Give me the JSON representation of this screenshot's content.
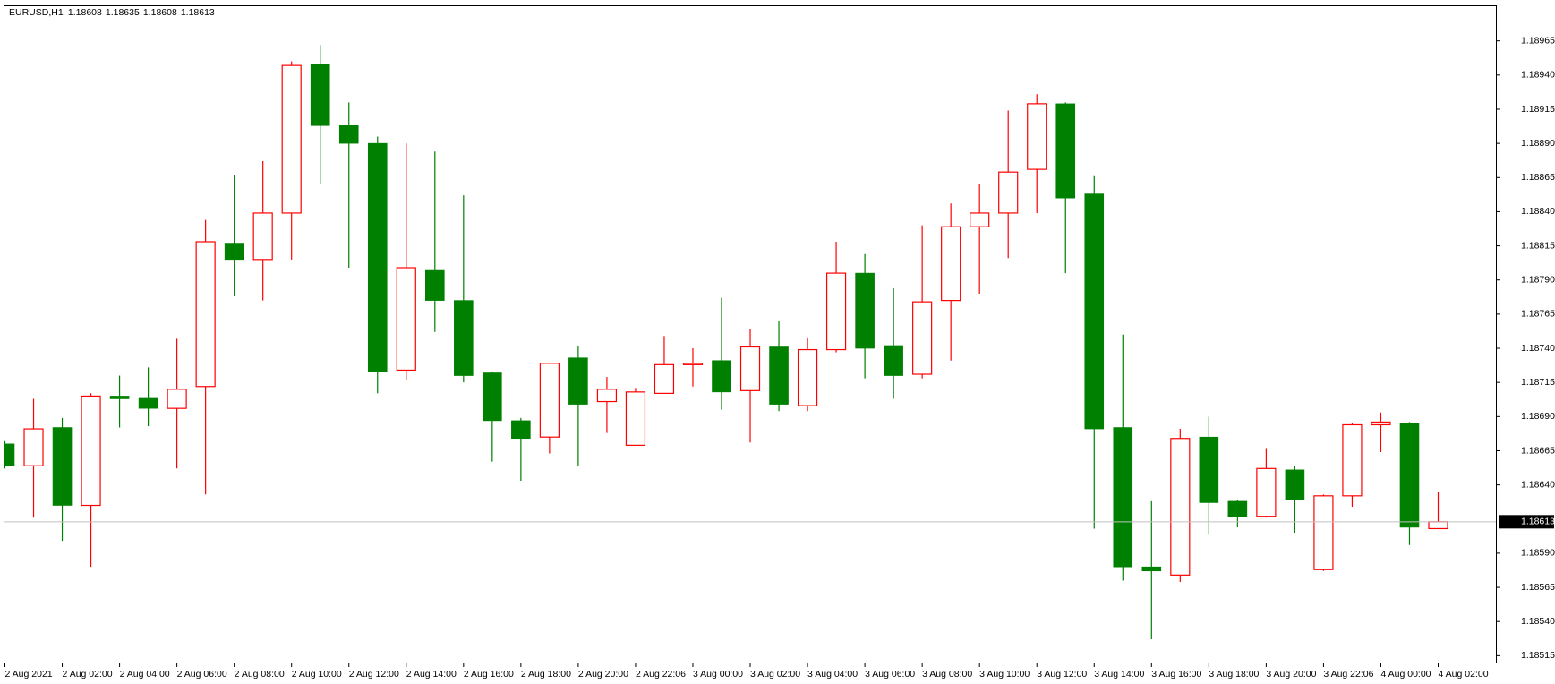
{
  "chart_data": {
    "type": "candlestick",
    "title": "EURUSD,H1",
    "categories": [
      "2 Aug 2021",
      null,
      "2 Aug 02:00",
      null,
      "2 Aug 04:00",
      null,
      "2 Aug 06:00",
      null,
      "2 Aug 08:00",
      null,
      "2 Aug 10:00",
      null,
      "2 Aug 12:00",
      null,
      "2 Aug 14:00",
      null,
      "2 Aug 16:00",
      null,
      "2 Aug 18:00",
      null,
      "2 Aug 20:00",
      null,
      "2 Aug 22:06",
      null,
      "3 Aug 00:00",
      null,
      "3 Aug 02:00",
      null,
      "3 Aug 04:00",
      null,
      "3 Aug 06:00",
      null,
      "3 Aug 08:00",
      null,
      "3 Aug 10:00",
      null,
      "3 Aug 12:00",
      null,
      "3 Aug 14:00",
      null,
      "3 Aug 16:00",
      null,
      "3 Aug 18:00",
      null,
      "3 Aug 20:00",
      null,
      "3 Aug 22:06",
      null,
      "4 Aug 00:00",
      null,
      "4 Aug 02:00"
    ],
    "open": [
      1.1867,
      1.18654,
      1.18682,
      1.18625,
      1.18705,
      1.18704,
      1.18696,
      1.18712,
      1.18817,
      1.18805,
      1.18839,
      1.18948,
      1.18903,
      1.1889,
      1.18724,
      1.18797,
      1.18775,
      1.18722,
      1.18687,
      1.18675,
      1.18733,
      1.18701,
      1.18669,
      1.18707,
      1.18728,
      1.18731,
      1.18709,
      1.18741,
      1.18698,
      1.18739,
      1.18795,
      1.18742,
      1.18721,
      1.18775,
      1.18829,
      1.18839,
      1.18871,
      1.18919,
      1.18853,
      1.18682,
      1.1858,
      1.18574,
      1.18675,
      1.18628,
      1.18617,
      1.18651,
      1.18578,
      1.18632,
      1.18684,
      1.18685,
      1.18608
    ],
    "high": [
      1.18672,
      1.18703,
      1.18689,
      1.18707,
      1.1872,
      1.18726,
      1.18747,
      1.18834,
      1.18867,
      1.18877,
      1.1895,
      1.18962,
      1.1892,
      1.18895,
      1.1889,
      1.18884,
      1.18852,
      1.18723,
      1.18689,
      1.18729,
      1.18742,
      1.18719,
      1.18711,
      1.18749,
      1.1874,
      1.18777,
      1.18754,
      1.1876,
      1.18748,
      1.18818,
      1.18809,
      1.18784,
      1.1883,
      1.18846,
      1.1886,
      1.18914,
      1.18926,
      1.1892,
      1.18866,
      1.1875,
      1.18628,
      1.18681,
      1.1869,
      1.18629,
      1.18667,
      1.18654,
      1.18633,
      1.18685,
      1.18693,
      1.18686,
      1.18635
    ],
    "low": [
      1.18652,
      1.18616,
      1.18599,
      1.1858,
      1.18682,
      1.18683,
      1.18652,
      1.18633,
      1.18778,
      1.18775,
      1.18805,
      1.1886,
      1.18799,
      1.18707,
      1.18717,
      1.18752,
      1.18715,
      1.18657,
      1.18643,
      1.18663,
      1.18654,
      1.18678,
      1.18669,
      1.18707,
      1.18712,
      1.18695,
      1.18671,
      1.18694,
      1.18694,
      1.18737,
      1.18718,
      1.18703,
      1.18718,
      1.18731,
      1.1878,
      1.18806,
      1.18839,
      1.18795,
      1.18608,
      1.1857,
      1.18527,
      1.18569,
      1.18604,
      1.18609,
      1.18616,
      1.18605,
      1.18577,
      1.18624,
      1.18664,
      1.18596,
      1.18608
    ],
    "close": [
      1.18654,
      1.18681,
      1.18625,
      1.18705,
      1.18703,
      1.18696,
      1.1871,
      1.18818,
      1.18805,
      1.18839,
      1.18947,
      1.18903,
      1.1889,
      1.18723,
      1.18799,
      1.18775,
      1.1872,
      1.18687,
      1.18674,
      1.18729,
      1.18699,
      1.1871,
      1.18708,
      1.18728,
      1.18729,
      1.18708,
      1.18741,
      1.18699,
      1.18739,
      1.18795,
      1.1874,
      1.1872,
      1.18774,
      1.18829,
      1.18839,
      1.18869,
      1.18919,
      1.1885,
      1.18681,
      1.1858,
      1.18577,
      1.18674,
      1.18627,
      1.18617,
      1.18652,
      1.18629,
      1.18632,
      1.18684,
      1.18686,
      1.18609,
      1.18613
    ],
    "up_color": "#ff0000",
    "down_color": "#008000",
    "ylim": [
      1.1851,
      1.18991
    ],
    "yticks": [
      {
        "value": 1.18965,
        "label": "1.18965"
      },
      {
        "value": 1.1894,
        "label": "1.18940"
      },
      {
        "value": 1.18915,
        "label": "1.18915"
      },
      {
        "value": 1.1889,
        "label": "1.18890"
      },
      {
        "value": 1.18865,
        "label": "1.18865"
      },
      {
        "value": 1.1884,
        "label": "1.18840"
      },
      {
        "value": 1.18815,
        "label": "1.18815"
      },
      {
        "value": 1.1879,
        "label": "1.18790"
      },
      {
        "value": 1.18765,
        "label": "1.18765"
      },
      {
        "value": 1.1874,
        "label": "1.18740"
      },
      {
        "value": 1.18715,
        "label": "1.18715"
      },
      {
        "value": 1.1869,
        "label": "1.18690"
      },
      {
        "value": 1.18665,
        "label": "1.18665"
      },
      {
        "value": 1.1864,
        "label": "1.18640"
      },
      {
        "value": 1.1859,
        "label": "1.18590"
      },
      {
        "value": 1.18565,
        "label": "1.18565"
      },
      {
        "value": 1.1854,
        "label": "1.18540"
      },
      {
        "value": 1.18515,
        "label": "1.18515"
      }
    ]
  }
}
